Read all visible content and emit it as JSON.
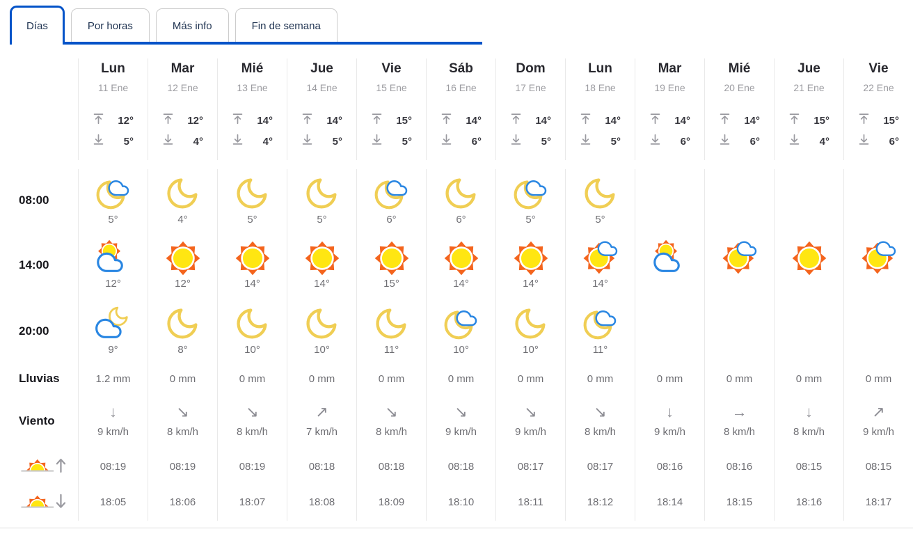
{
  "colors": {
    "accent": "#0353C8",
    "moon": "#F0CE54",
    "cloud_outline": "#2986E2",
    "sun_outer": "#F4641D",
    "sun_inner": "#FFE612"
  },
  "tabs": [
    {
      "label": "Días",
      "active": true
    },
    {
      "label": "Por horas",
      "active": false
    },
    {
      "label": "Más info",
      "active": false
    },
    {
      "label": "Fin de semana",
      "active": false
    }
  ],
  "row_labels": {
    "h08": "08:00",
    "h14": "14:00",
    "h20": "20:00",
    "rain": "Lluvias",
    "wind": "Viento"
  },
  "label_icons": {
    "sunrise": "sunrise-icon",
    "sunset": "sunset-icon"
  },
  "days": [
    {
      "name": "Lun",
      "date": "11 Ene",
      "max": "12°",
      "min": "5°",
      "h08": {
        "icon": "moon-cloud",
        "temp": "5°"
      },
      "h14": {
        "icon": "sun-behind-cloud",
        "temp": "12°"
      },
      "h20": {
        "icon": "moon-behind-cloud",
        "temp": "9°"
      },
      "rain": "1.2 mm",
      "wind_dir": "↓",
      "wind_speed": "9 km/h",
      "sunrise": "08:19",
      "sunset": "18:05"
    },
    {
      "name": "Mar",
      "date": "12 Ene",
      "max": "12°",
      "min": "4°",
      "h08": {
        "icon": "moon",
        "temp": "4°"
      },
      "h14": {
        "icon": "sun",
        "temp": "12°"
      },
      "h20": {
        "icon": "moon",
        "temp": "8°"
      },
      "rain": "0 mm",
      "wind_dir": "↘",
      "wind_speed": "8 km/h",
      "sunrise": "08:19",
      "sunset": "18:06"
    },
    {
      "name": "Mié",
      "date": "13 Ene",
      "max": "14°",
      "min": "4°",
      "h08": {
        "icon": "moon",
        "temp": "5°"
      },
      "h14": {
        "icon": "sun",
        "temp": "14°"
      },
      "h20": {
        "icon": "moon",
        "temp": "10°"
      },
      "rain": "0 mm",
      "wind_dir": "↘",
      "wind_speed": "8 km/h",
      "sunrise": "08:19",
      "sunset": "18:07"
    },
    {
      "name": "Jue",
      "date": "14 Ene",
      "max": "14°",
      "min": "5°",
      "h08": {
        "icon": "moon",
        "temp": "5°"
      },
      "h14": {
        "icon": "sun",
        "temp": "14°"
      },
      "h20": {
        "icon": "moon",
        "temp": "10°"
      },
      "rain": "0 mm",
      "wind_dir": "↗",
      "wind_speed": "7 km/h",
      "sunrise": "08:18",
      "sunset": "18:08"
    },
    {
      "name": "Vie",
      "date": "15 Ene",
      "max": "15°",
      "min": "5°",
      "h08": {
        "icon": "moon-cloud",
        "temp": "6°"
      },
      "h14": {
        "icon": "sun",
        "temp": "15°"
      },
      "h20": {
        "icon": "moon",
        "temp": "11°"
      },
      "rain": "0 mm",
      "wind_dir": "↘",
      "wind_speed": "8 km/h",
      "sunrise": "08:18",
      "sunset": "18:09"
    },
    {
      "name": "Sáb",
      "date": "16 Ene",
      "max": "14°",
      "min": "6°",
      "h08": {
        "icon": "moon",
        "temp": "6°"
      },
      "h14": {
        "icon": "sun",
        "temp": "14°"
      },
      "h20": {
        "icon": "moon-cloud",
        "temp": "10°"
      },
      "rain": "0 mm",
      "wind_dir": "↘",
      "wind_speed": "9 km/h",
      "sunrise": "08:18",
      "sunset": "18:10"
    },
    {
      "name": "Dom",
      "date": "17 Ene",
      "max": "14°",
      "min": "5°",
      "h08": {
        "icon": "moon-cloud",
        "temp": "5°"
      },
      "h14": {
        "icon": "sun",
        "temp": "14°"
      },
      "h20": {
        "icon": "moon",
        "temp": "10°"
      },
      "rain": "0 mm",
      "wind_dir": "↘",
      "wind_speed": "9 km/h",
      "sunrise": "08:17",
      "sunset": "18:11"
    },
    {
      "name": "Lun",
      "date": "18 Ene",
      "max": "14°",
      "min": "5°",
      "h08": {
        "icon": "moon",
        "temp": "5°"
      },
      "h14": {
        "icon": "sun-cloud",
        "temp": "14°"
      },
      "h20": {
        "icon": "moon-cloud",
        "temp": "11°"
      },
      "rain": "0 mm",
      "wind_dir": "↘",
      "wind_speed": "8 km/h",
      "sunrise": "08:17",
      "sunset": "18:12"
    },
    {
      "name": "Mar",
      "date": "19 Ene",
      "max": "14°",
      "min": "6°",
      "h08": {
        "icon": "none",
        "temp": ""
      },
      "h14": {
        "icon": "sun-behind-cloud",
        "temp": ""
      },
      "h20": {
        "icon": "none",
        "temp": ""
      },
      "rain": "0 mm",
      "wind_dir": "↓",
      "wind_speed": "9 km/h",
      "sunrise": "08:16",
      "sunset": "18:14"
    },
    {
      "name": "Mié",
      "date": "20 Ene",
      "max": "14°",
      "min": "6°",
      "h08": {
        "icon": "none",
        "temp": ""
      },
      "h14": {
        "icon": "sun-cloud",
        "temp": ""
      },
      "h20": {
        "icon": "none",
        "temp": ""
      },
      "rain": "0 mm",
      "wind_dir": "→",
      "wind_speed": "8 km/h",
      "sunrise": "08:16",
      "sunset": "18:15"
    },
    {
      "name": "Jue",
      "date": "21 Ene",
      "max": "15°",
      "min": "4°",
      "h08": {
        "icon": "none",
        "temp": ""
      },
      "h14": {
        "icon": "sun",
        "temp": ""
      },
      "h20": {
        "icon": "none",
        "temp": ""
      },
      "rain": "0 mm",
      "wind_dir": "↓",
      "wind_speed": "8 km/h",
      "sunrise": "08:15",
      "sunset": "18:16"
    },
    {
      "name": "Vie",
      "date": "22 Ene",
      "max": "15°",
      "min": "6°",
      "h08": {
        "icon": "none",
        "temp": ""
      },
      "h14": {
        "icon": "sun-cloud",
        "temp": ""
      },
      "h20": {
        "icon": "none",
        "temp": ""
      },
      "rain": "0 mm",
      "wind_dir": "↗",
      "wind_speed": "9 km/h",
      "sunrise": "08:15",
      "sunset": "18:17"
    }
  ]
}
